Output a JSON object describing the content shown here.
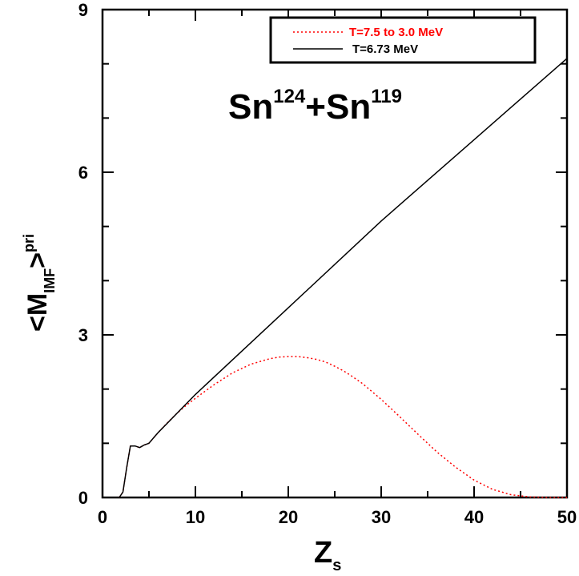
{
  "chart_data": {
    "type": "line",
    "xlabel": {
      "main": "Z",
      "sub": "s"
    },
    "ylabel": {
      "pre": "<M",
      "sub": "IMF",
      "post": ">",
      "sup": "pri"
    },
    "annotation": {
      "part1": "Sn",
      "sup1": "124",
      "part2": "+Sn",
      "sup2": "119"
    },
    "xlim": [
      0,
      50
    ],
    "ylim": [
      0,
      9
    ],
    "x_ticks": [
      0,
      10,
      20,
      30,
      40,
      50
    ],
    "y_ticks": [
      0,
      3,
      6,
      9
    ],
    "legend_position": "top-right",
    "series": [
      {
        "name": "T=7.5 to 3.0 MeV",
        "color": "#ff0000",
        "style": "dotted",
        "x": [
          1.8,
          2.2,
          2.6,
          3.0,
          3.5,
          4.0,
          4.5,
          5.0,
          6,
          7,
          8,
          9,
          10,
          12,
          14,
          16,
          18,
          19,
          20,
          21,
          22,
          23,
          24,
          25,
          26,
          27,
          28,
          30,
          32,
          34,
          36,
          38,
          40,
          42,
          44,
          46,
          48,
          50
        ],
        "y": [
          0.0,
          0.1,
          0.55,
          0.95,
          0.95,
          0.92,
          0.97,
          1.0,
          1.2,
          1.38,
          1.55,
          1.7,
          1.83,
          2.08,
          2.3,
          2.46,
          2.56,
          2.59,
          2.6,
          2.6,
          2.58,
          2.55,
          2.5,
          2.42,
          2.33,
          2.22,
          2.1,
          1.81,
          1.49,
          1.16,
          0.84,
          0.56,
          0.32,
          0.15,
          0.05,
          0.01,
          0.0,
          0.0
        ]
      },
      {
        "name": "T=6.73 MeV",
        "color": "#000000",
        "style": "solid",
        "x": [
          1.8,
          2.2,
          2.6,
          3.0,
          3.5,
          4.0,
          4.5,
          5.0,
          6,
          8,
          10,
          20,
          30,
          40,
          50
        ],
        "y": [
          0.0,
          0.1,
          0.55,
          0.95,
          0.95,
          0.92,
          0.97,
          1.0,
          1.2,
          1.55,
          1.9,
          3.5,
          5.1,
          6.6,
          8.1
        ]
      }
    ]
  }
}
